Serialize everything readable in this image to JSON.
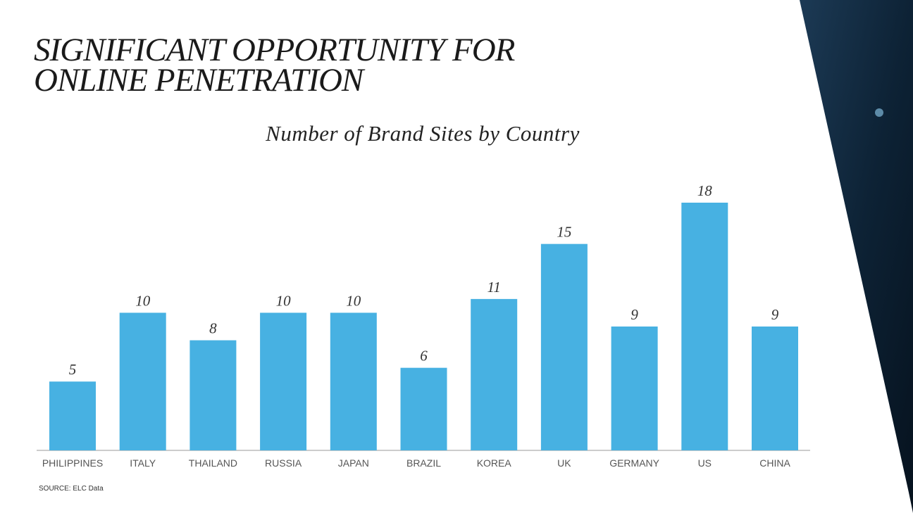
{
  "chart_data": {
    "type": "bar",
    "title": "SIGNIFICANT OPPORTUNITY FOR ONLINE PENETRATION",
    "subtitle": "Number of Brand Sites by Country",
    "categories": [
      "PHILIPPINES",
      "ITALY",
      "THAILAND",
      "RUSSIA",
      "JAPAN",
      "BRAZIL",
      "KOREA",
      "UK",
      "GERMANY",
      "US",
      "CHINA"
    ],
    "values": [
      5,
      10,
      8,
      10,
      10,
      6,
      11,
      15,
      9,
      18,
      9
    ],
    "color": "#47b1e2",
    "source": "SOURCE: ELC Data"
  }
}
